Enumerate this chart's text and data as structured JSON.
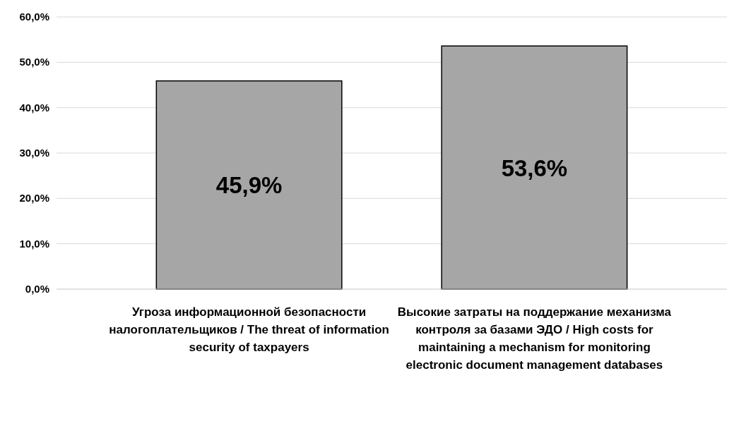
{
  "chart_data": {
    "type": "bar",
    "categories": [
      "Угроза информационной безопасности налогоплательщиков / The threat of information security of taxpayers",
      "Высокие затраты на поддержание механизма контроля за базами ЭДО / High costs for maintaining a mechanism for monitoring electronic document management databases"
    ],
    "values": [
      45.9,
      53.6
    ],
    "value_labels": [
      "45,9%",
      "53,6%"
    ],
    "color": "#a6a6a6",
    "ylim": [
      0,
      60
    ],
    "yticks": [
      {
        "value": 0,
        "label": "0,0%"
      },
      {
        "value": 10,
        "label": "10,0%"
      },
      {
        "value": 20,
        "label": "20,0%"
      },
      {
        "value": 30,
        "label": "30,0%"
      },
      {
        "value": 40,
        "label": "40,0%"
      },
      {
        "value": 50,
        "label": "50,0%"
      },
      {
        "value": 60,
        "label": "60,0%"
      }
    ],
    "grid": "y"
  }
}
